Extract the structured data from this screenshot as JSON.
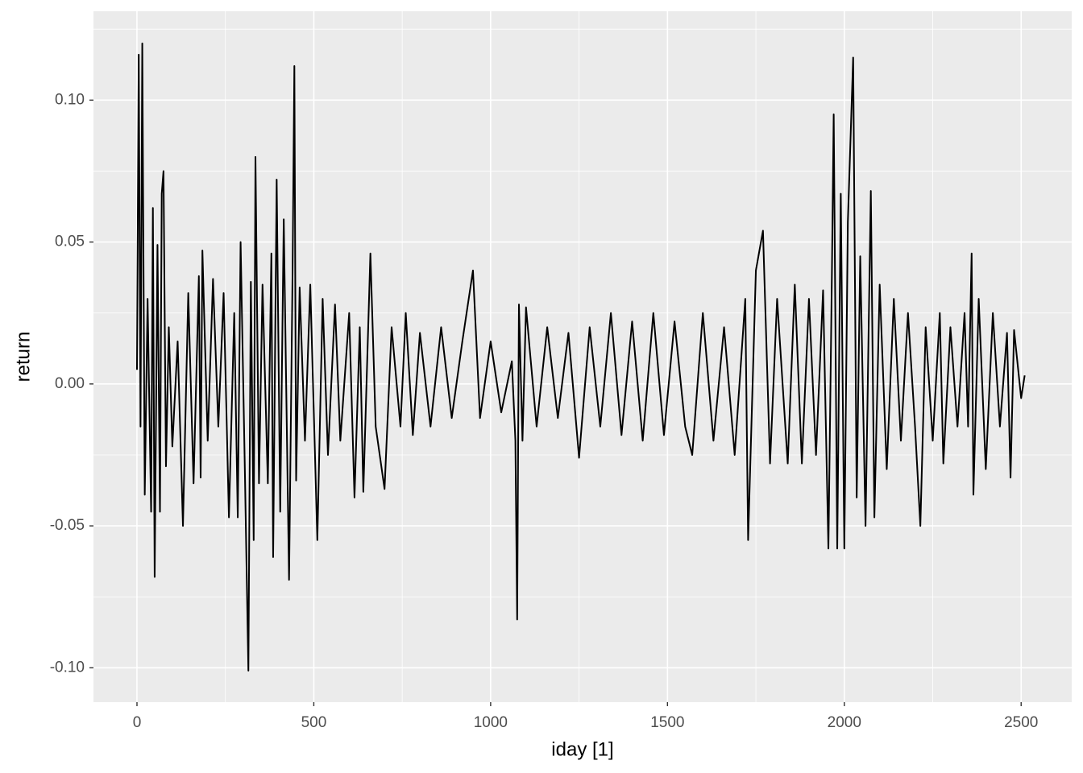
{
  "chart_data": {
    "type": "line",
    "x_label": "iday [1]",
    "y_label": "return",
    "x": [
      0,
      5,
      10,
      15,
      22,
      30,
      40,
      45,
      50,
      58,
      65,
      70,
      75,
      82,
      90,
      100,
      115,
      130,
      145,
      160,
      175,
      180,
      185,
      200,
      215,
      230,
      245,
      260,
      275,
      285,
      293,
      305,
      315,
      322,
      330,
      335,
      345,
      355,
      370,
      380,
      385,
      395,
      405,
      415,
      430,
      440,
      445,
      450,
      460,
      475,
      490,
      510,
      525,
      540,
      560,
      575,
      600,
      615,
      630,
      640,
      660,
      675,
      700,
      720,
      745,
      760,
      780,
      800,
      830,
      860,
      890,
      920,
      950,
      970,
      1000,
      1030,
      1060,
      1070,
      1075,
      1080,
      1090,
      1100,
      1130,
      1160,
      1190,
      1220,
      1250,
      1280,
      1310,
      1340,
      1370,
      1400,
      1430,
      1460,
      1490,
      1520,
      1550,
      1570,
      1600,
      1630,
      1660,
      1690,
      1720,
      1728,
      1750,
      1770,
      1790,
      1810,
      1840,
      1860,
      1880,
      1900,
      1920,
      1940,
      1955,
      1965,
      1970,
      1980,
      1990,
      2000,
      2010,
      2025,
      2035,
      2045,
      2060,
      2075,
      2085,
      2100,
      2120,
      2140,
      2160,
      2180,
      2200,
      2215,
      2230,
      2250,
      2270,
      2280,
      2300,
      2320,
      2340,
      2350,
      2360,
      2365,
      2380,
      2400,
      2420,
      2440,
      2460,
      2470,
      2480,
      2500,
      2510
    ],
    "series": [
      {
        "color": "#000000",
        "values": [
          0.005,
          0.116,
          -0.015,
          0.12,
          -0.039,
          0.03,
          -0.045,
          0.062,
          -0.068,
          0.049,
          -0.045,
          0.067,
          0.075,
          -0.029,
          0.02,
          -0.022,
          0.015,
          -0.05,
          0.032,
          -0.035,
          0.038,
          -0.033,
          0.047,
          -0.02,
          0.037,
          -0.015,
          0.032,
          -0.047,
          0.025,
          -0.047,
          0.05,
          -0.03,
          -0.101,
          0.036,
          -0.055,
          0.08,
          -0.035,
          0.035,
          -0.035,
          0.046,
          -0.061,
          0.072,
          -0.045,
          0.058,
          -0.069,
          0.04,
          0.112,
          -0.034,
          0.034,
          -0.02,
          0.035,
          -0.055,
          0.03,
          -0.025,
          0.028,
          -0.02,
          0.025,
          -0.04,
          0.02,
          -0.038,
          0.046,
          -0.015,
          -0.037,
          0.02,
          -0.015,
          0.025,
          -0.018,
          0.018,
          -0.015,
          0.02,
          -0.012,
          0.015,
          0.04,
          -0.012,
          0.015,
          -0.01,
          0.008,
          -0.02,
          -0.083,
          0.028,
          -0.02,
          0.027,
          -0.015,
          0.02,
          -0.012,
          0.018,
          -0.026,
          0.02,
          -0.015,
          0.025,
          -0.018,
          0.022,
          -0.02,
          0.025,
          -0.018,
          0.022,
          -0.015,
          -0.025,
          0.025,
          -0.02,
          0.02,
          -0.025,
          0.03,
          -0.055,
          0.04,
          0.054,
          -0.028,
          0.03,
          -0.028,
          0.035,
          -0.028,
          0.03,
          -0.025,
          0.033,
          -0.058,
          0.04,
          0.095,
          -0.058,
          0.067,
          -0.058,
          0.057,
          0.115,
          -0.04,
          0.045,
          -0.05,
          0.068,
          -0.047,
          0.035,
          -0.03,
          0.03,
          -0.02,
          0.025,
          -0.015,
          -0.05,
          0.02,
          -0.02,
          0.025,
          -0.028,
          0.02,
          -0.015,
          0.025,
          -0.015,
          0.046,
          -0.039,
          0.03,
          -0.03,
          0.025,
          -0.015,
          0.018,
          -0.033,
          0.019,
          -0.005,
          0.003
        ]
      }
    ],
    "xlim": [
      -123,
      2643
    ],
    "ylim": [
      -0.1121,
      0.1313
    ],
    "xticks": [
      0,
      500,
      1000,
      1500,
      2000,
      2500
    ],
    "yticks": [
      {
        "value": -0.1,
        "label": "-0.10"
      },
      {
        "value": -0.05,
        "label": "-0.05"
      },
      {
        "value": 0,
        "label": "0.00"
      },
      {
        "value": 0.05,
        "label": "0.05"
      },
      {
        "value": 0.1,
        "label": "0.10"
      }
    ],
    "x_minor_ticks": [
      250,
      750,
      1250,
      1750,
      2250
    ],
    "y_minor_ticks": [
      -0.075,
      -0.025,
      0.025,
      0.075,
      0.125
    ],
    "grid": true
  }
}
